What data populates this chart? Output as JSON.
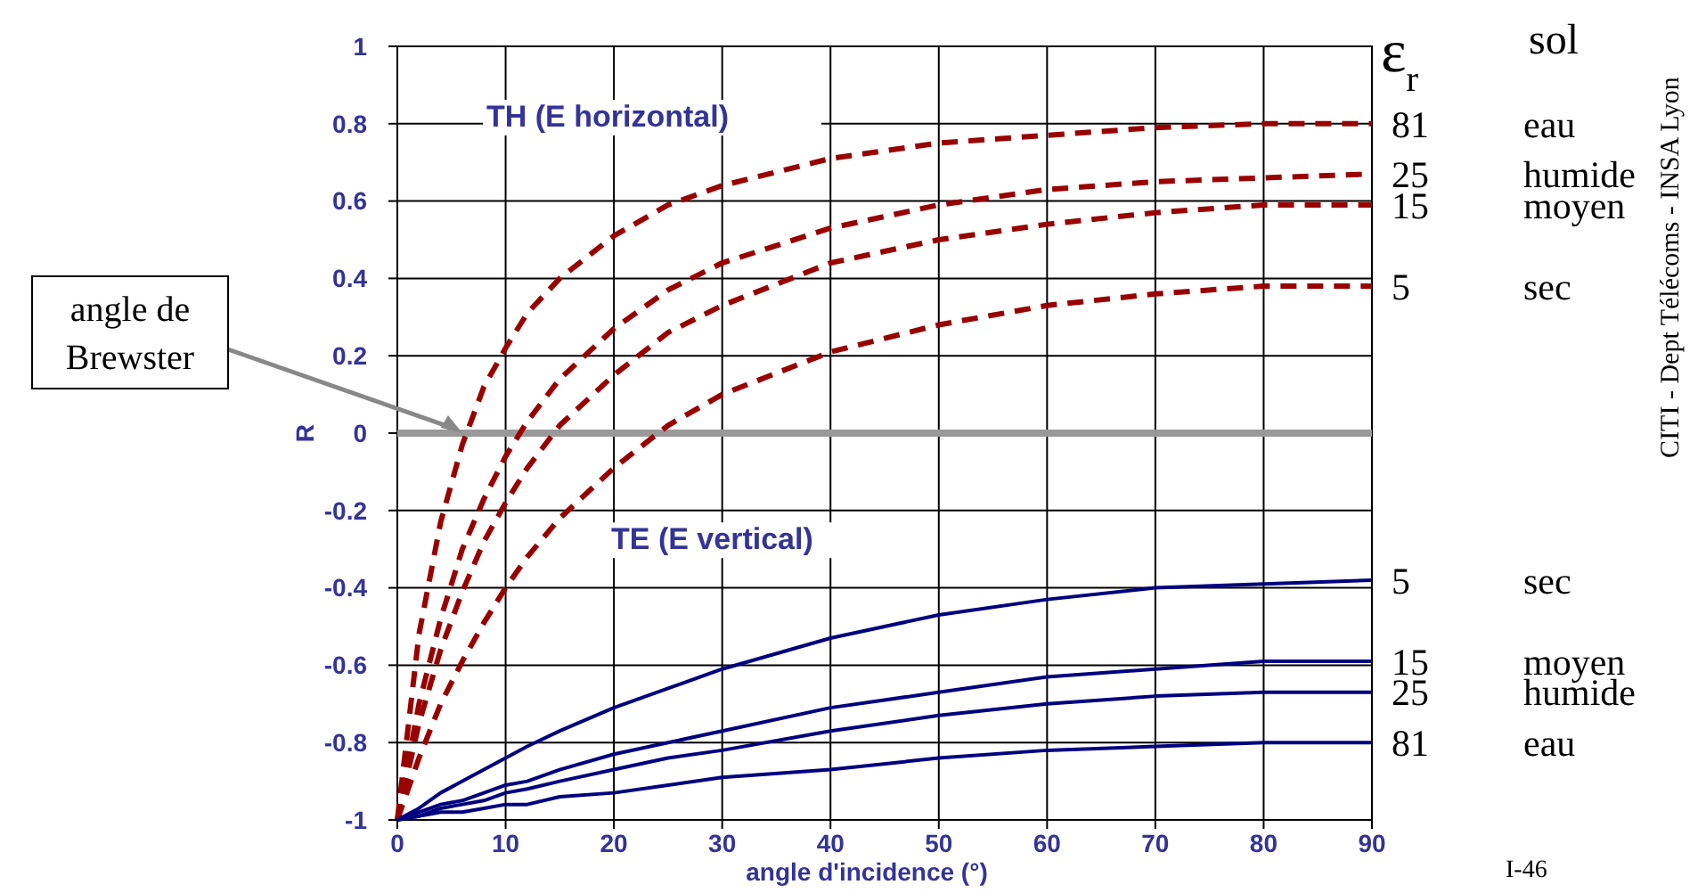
{
  "chart_data": {
    "type": "line",
    "xlabel": "angle d'incidence (°)",
    "ylabel": "R",
    "x": [
      0,
      2,
      4,
      6,
      8,
      10,
      12,
      15,
      20,
      25,
      30,
      40,
      50,
      60,
      70,
      80,
      90
    ],
    "xlim": [
      0,
      90
    ],
    "xticks": [
      0,
      10,
      20,
      30,
      40,
      50,
      60,
      70,
      80,
      90
    ],
    "ylim": [
      -1,
      1
    ],
    "yticks": [
      -1,
      -0.8,
      -0.6,
      -0.4,
      -0.2,
      0,
      0.2,
      0.4,
      0.6,
      0.8,
      1
    ],
    "grid": true,
    "ref_lines": [
      {
        "axis": "y",
        "value": 0,
        "color": "#999999"
      }
    ],
    "series": [
      {
        "name": "81",
        "color": "#990000",
        "line_style": "dashed",
        "values": [
          -1,
          -0.52,
          -0.23,
          -0.03,
          0.12,
          0.22,
          0.31,
          0.4,
          0.51,
          0.59,
          0.64,
          0.71,
          0.75,
          0.77,
          0.79,
          0.8,
          0.8
        ]
      },
      {
        "name": "25",
        "color": "#990000",
        "line_style": "dashed",
        "values": [
          -1,
          -0.7,
          -0.48,
          -0.3,
          -0.17,
          -0.06,
          0.03,
          0.14,
          0.27,
          0.37,
          0.44,
          0.53,
          0.59,
          0.63,
          0.65,
          0.66,
          0.67
        ]
      },
      {
        "name": "15",
        "color": "#990000",
        "line_style": "dashed",
        "values": [
          -1,
          -0.75,
          -0.56,
          -0.41,
          -0.28,
          -0.18,
          -0.09,
          0.02,
          0.15,
          0.26,
          0.33,
          0.44,
          0.5,
          0.54,
          0.57,
          0.59,
          0.59
        ]
      },
      {
        "name": "5",
        "color": "#990000",
        "line_style": "dashed",
        "values": [
          -1,
          -0.84,
          -0.7,
          -0.59,
          -0.49,
          -0.4,
          -0.32,
          -0.22,
          -0.09,
          0.02,
          0.1,
          0.21,
          0.28,
          0.33,
          0.36,
          0.38,
          0.38
        ]
      },
      {
        "name": "5",
        "color": "#000080",
        "line_style": "solid",
        "values": [
          -1,
          -0.97,
          -0.93,
          -0.9,
          -0.87,
          -0.84,
          -0.81,
          -0.77,
          -0.71,
          -0.66,
          -0.61,
          -0.53,
          -0.47,
          -0.43,
          -0.4,
          -0.39,
          -0.38
        ]
      },
      {
        "name": "15",
        "color": "#000080",
        "line_style": "solid",
        "values": [
          -1,
          -0.98,
          -0.96,
          -0.95,
          -0.93,
          -0.91,
          -0.9,
          -0.87,
          -0.83,
          -0.8,
          -0.77,
          -0.71,
          -0.67,
          -0.63,
          -0.61,
          -0.59,
          -0.59
        ]
      },
      {
        "name": "25",
        "color": "#000080",
        "line_style": "solid",
        "values": [
          -1,
          -0.99,
          -0.97,
          -0.96,
          -0.95,
          -0.93,
          -0.92,
          -0.9,
          -0.87,
          -0.84,
          -0.82,
          -0.77,
          -0.73,
          -0.7,
          -0.68,
          -0.67,
          -0.67
        ]
      },
      {
        "name": "81",
        "color": "#000080",
        "line_style": "solid",
        "values": [
          -1,
          -0.99,
          -0.98,
          -0.98,
          -0.97,
          -0.96,
          -0.96,
          -0.94,
          -0.93,
          -0.91,
          -0.89,
          -0.87,
          -0.84,
          -0.82,
          -0.81,
          -0.8,
          -0.8
        ]
      }
    ],
    "annotations": [
      "ε$_{r}$",
      "sol",
      "CITI - Dept Télécoms - INSA Lyon",
      "I-46",
      "TH (E horizontal)",
      "TE (E vertical)",
      {
        "text": "angle de Brewster",
        "x": 6,
        "y": 0
      },
      "eau",
      "humide",
      "moyen",
      "sec",
      "sec",
      "moyen",
      "humide",
      "eau"
    ]
  }
}
